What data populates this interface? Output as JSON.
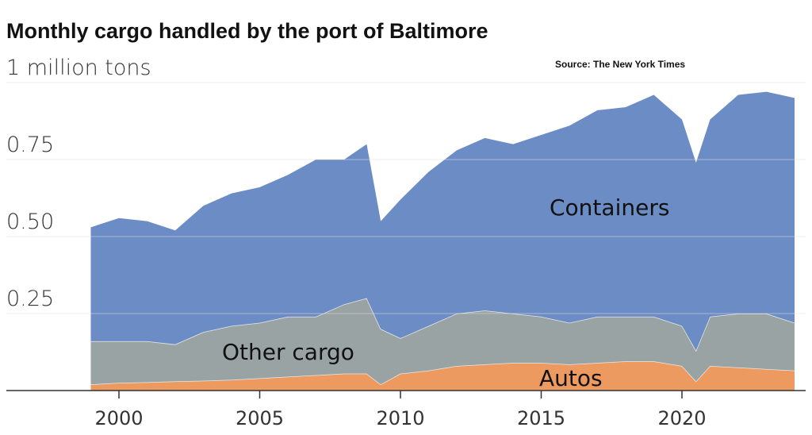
{
  "chart_data": {
    "type": "area",
    "stacked": true,
    "title": "Monthly cargo handled by the port of Baltimore",
    "source": "Source: The New York Times",
    "ylabel": "million tons",
    "ylim": [
      0,
      1
    ],
    "xlim": [
      1998,
      2025
    ],
    "yticks": [
      {
        "value": 0.25,
        "label": "0.25"
      },
      {
        "value": 0.5,
        "label": "0.50"
      },
      {
        "value": 0.75,
        "label": "0.75"
      },
      {
        "value": 1,
        "label": "1 million tons"
      }
    ],
    "xticks": [
      {
        "value": 2000,
        "label": "2000"
      },
      {
        "value": 2005,
        "label": "2005"
      },
      {
        "value": 2010,
        "label": "2010"
      },
      {
        "value": 2015,
        "label": "2015"
      },
      {
        "value": 2020,
        "label": "2020"
      }
    ],
    "grid": true,
    "x": [
      1999,
      2000,
      2001,
      2002,
      2003,
      2004,
      2005,
      2006,
      2007,
      2008,
      2008.8,
      2009.3,
      2010,
      2011,
      2012,
      2013,
      2014,
      2015,
      2016,
      2017,
      2018,
      2019,
      2020,
      2020.5,
      2021,
      2022,
      2023,
      2024
    ],
    "series": [
      {
        "name": "Autos",
        "label": "Autos",
        "color": "#ec9a5f",
        "values": [
          0.02,
          0.025,
          0.027,
          0.03,
          0.032,
          0.035,
          0.04,
          0.045,
          0.05,
          0.055,
          0.055,
          0.02,
          0.055,
          0.065,
          0.08,
          0.085,
          0.09,
          0.09,
          0.085,
          0.09,
          0.095,
          0.095,
          0.08,
          0.03,
          0.08,
          0.075,
          0.07,
          0.065
        ]
      },
      {
        "name": "Other cargo",
        "label": "Other cargo",
        "color": "#9aa3a4",
        "values": [
          0.14,
          0.135,
          0.133,
          0.12,
          0.158,
          0.175,
          0.18,
          0.195,
          0.19,
          0.225,
          0.245,
          0.18,
          0.115,
          0.145,
          0.17,
          0.175,
          0.16,
          0.15,
          0.135,
          0.15,
          0.145,
          0.145,
          0.13,
          0.1,
          0.16,
          0.175,
          0.18,
          0.155
        ]
      },
      {
        "name": "Containers",
        "label": "Containers",
        "color": "#6c8cc5",
        "values": [
          0.37,
          0.4,
          0.39,
          0.37,
          0.41,
          0.43,
          0.44,
          0.46,
          0.51,
          0.47,
          0.5,
          0.35,
          0.45,
          0.5,
          0.53,
          0.56,
          0.55,
          0.59,
          0.64,
          0.67,
          0.68,
          0.72,
          0.67,
          0.61,
          0.64,
          0.71,
          0.72,
          0.73
        ]
      }
    ]
  }
}
